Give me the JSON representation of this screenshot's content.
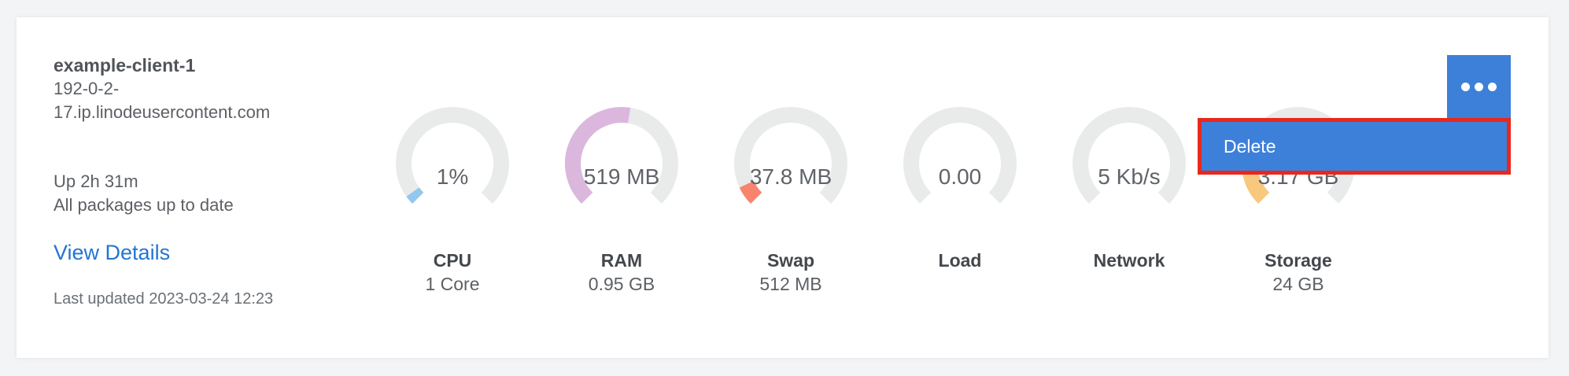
{
  "card": {
    "title": "example-client-1",
    "hostname": "192-0-2-17.ip.linodeusercontent.com",
    "uptime": "Up 2h 31m",
    "packages_status": "All packages up to date",
    "view_details_label": "View Details",
    "last_updated": "Last updated 2023-03-24 12:23"
  },
  "gauges": [
    {
      "id": "cpu",
      "value": "1%",
      "label": "CPU",
      "sublabel": "1 Core",
      "fraction": 0.01,
      "color": "#92c7ee"
    },
    {
      "id": "ram",
      "value": "519 MB",
      "label": "RAM",
      "sublabel": "0.95 GB",
      "fraction": 0.533,
      "color": "#dbb7de"
    },
    {
      "id": "swap",
      "value": "37.8 MB",
      "label": "Swap",
      "sublabel": "512 MB",
      "fraction": 0.074,
      "color": "#f9846d"
    },
    {
      "id": "load",
      "value": "0.00",
      "label": "Load",
      "sublabel": "",
      "fraction": 0,
      "color": "#92c7ee"
    },
    {
      "id": "network",
      "value": "5 Kb/s",
      "label": "Network",
      "sublabel": "",
      "fraction": 0,
      "color": "#92c7ee"
    },
    {
      "id": "storage",
      "value": "3.17 GB",
      "label": "Storage",
      "sublabel": "24 GB",
      "fraction": 0.132,
      "color": "#f8c87e"
    }
  ],
  "menu": {
    "items": [
      {
        "id": "delete",
        "label": "Delete",
        "highlighted": true
      }
    ]
  },
  "colors": {
    "gauge_track": "#e9eaea",
    "accent_blue": "#3d80d9",
    "link_blue": "#2276d2",
    "highlight_red": "#e8281c",
    "page_background": "#f3f4f5"
  }
}
